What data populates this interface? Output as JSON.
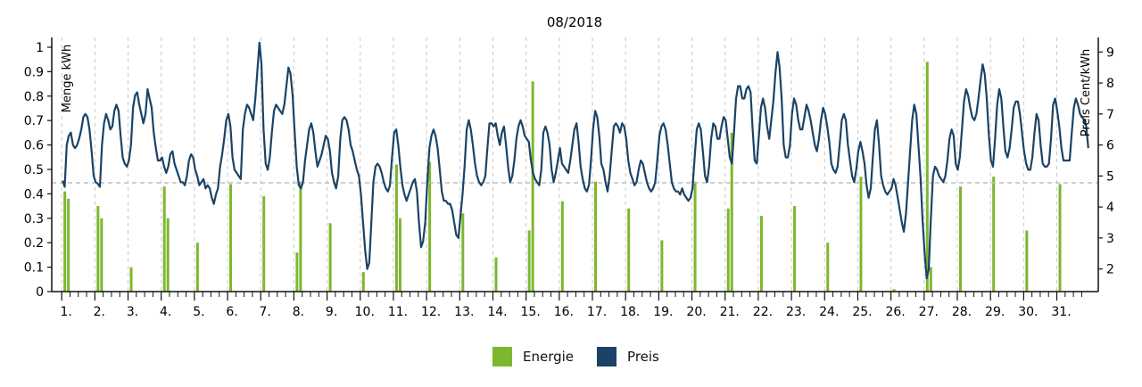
{
  "chart_data": {
    "type": "bar+line",
    "title": "08/2018",
    "ylabel_left": "Menge kWh",
    "ylabel_right": "Preis Cent/kWh",
    "ylim_left": [
      0,
      1.04
    ],
    "yticks_left": [
      "0",
      "0.1",
      "0.2",
      "0.3",
      "0.4",
      "0.5",
      "0.6",
      "0.7",
      "0.8",
      "0.9",
      "1"
    ],
    "ylim_right": [
      1.27,
      9.47
    ],
    "yticks_right": [
      "2",
      "3",
      "4",
      "5",
      "6",
      "7",
      "8",
      "9"
    ],
    "x_ticks": [
      "1.",
      "2.",
      "3.",
      "4.",
      "5.",
      "6.",
      "7.",
      "8.",
      "9.",
      "10.",
      "11.",
      "12.",
      "13.",
      "14.",
      "15.",
      "16.",
      "17.",
      "18.",
      "19.",
      "20.",
      "21.",
      "22.",
      "23.",
      "24.",
      "25.",
      "26.",
      "27.",
      "28.",
      "29.",
      "30.",
      "31."
    ],
    "reference_line_price": 4.78,
    "grid": "vertical dashed per day",
    "legend_position": "bottom-center",
    "series": [
      {
        "name": "Energie",
        "kind": "bar",
        "color": "#7db72f",
        "daily_values": [
          [
            0.41,
            0.38
          ],
          [
            0.35,
            0.3
          ],
          [
            0.1
          ],
          [
            0.43,
            0.3
          ],
          [
            0.2
          ],
          [
            0.44
          ],
          [
            0.39
          ],
          [
            0.16,
            0.45
          ],
          [
            0.28
          ],
          [
            0.08
          ],
          [
            0.52,
            0.3
          ],
          [
            0.53
          ],
          [
            0.32
          ],
          [
            0.14
          ],
          [
            0.25,
            0.86
          ],
          [
            0.37
          ],
          [
            0.45
          ],
          [
            0.34
          ],
          [
            0.21
          ],
          [
            0.45
          ],
          [
            0.34,
            0.65
          ],
          [
            0.31
          ],
          [
            0.35
          ],
          [
            0.2
          ],
          [
            0.47
          ],
          [
            0.01
          ],
          [
            0.94,
            0.1
          ],
          [
            0.43
          ],
          [
            0.47
          ],
          [
            0.25
          ],
          [
            0.44
          ]
        ]
      },
      {
        "name": "Preis",
        "kind": "line",
        "color": "#1a4366",
        "values": [
          4.85,
          4.65,
          6.0,
          6.3,
          6.4,
          6.0,
          5.9,
          6.0,
          6.2,
          6.5,
          6.9,
          7.0,
          6.9,
          6.5,
          5.8,
          5.0,
          4.8,
          4.75,
          4.65,
          6.0,
          6.7,
          7.0,
          6.8,
          6.5,
          6.6,
          7.1,
          7.3,
          7.1,
          6.3,
          5.6,
          5.4,
          5.3,
          5.5,
          6.0,
          7.2,
          7.6,
          7.7,
          7.3,
          7.0,
          6.7,
          7.0,
          7.8,
          7.5,
          7.2,
          6.4,
          5.9,
          5.5,
          5.5,
          5.6,
          5.3,
          5.1,
          5.3,
          5.7,
          5.8,
          5.4,
          5.2,
          5.0,
          4.8,
          4.8,
          4.7,
          5.0,
          5.5,
          5.7,
          5.6,
          5.2,
          5.0,
          4.7,
          4.8,
          4.9,
          4.6,
          4.7,
          4.6,
          4.3,
          4.1,
          4.4,
          4.6,
          5.3,
          5.7,
          6.2,
          6.8,
          7.0,
          6.6,
          5.6,
          5.2,
          5.1,
          5.0,
          4.9,
          6.5,
          7.0,
          7.3,
          7.2,
          7.0,
          6.8,
          7.5,
          8.4,
          9.3,
          8.6,
          6.5,
          5.4,
          5.2,
          5.6,
          6.4,
          7.1,
          7.3,
          7.2,
          7.1,
          7.0,
          7.3,
          7.9,
          8.5,
          8.3,
          7.6,
          6.4,
          5.3,
          4.7,
          4.6,
          4.8,
          5.5,
          6.0,
          6.5,
          6.7,
          6.4,
          5.8,
          5.3,
          5.5,
          5.7,
          6.0,
          6.3,
          6.2,
          5.8,
          5.1,
          4.8,
          4.6,
          5.0,
          6.2,
          6.8,
          6.9,
          6.8,
          6.5,
          6.0,
          5.8,
          5.5,
          5.2,
          5.0,
          4.4,
          3.5,
          2.6,
          2.0,
          2.2,
          3.5,
          4.8,
          5.3,
          5.4,
          5.3,
          5.1,
          4.8,
          4.6,
          4.5,
          4.7,
          5.6,
          6.4,
          6.5,
          6.0,
          5.3,
          4.7,
          4.4,
          4.2,
          4.4,
          4.6,
          4.8,
          4.9,
          4.5,
          3.5,
          2.7,
          2.9,
          3.5,
          4.8,
          5.9,
          6.3,
          6.5,
          6.3,
          5.9,
          5.2,
          4.5,
          4.2,
          4.2,
          4.1,
          4.1,
          3.9,
          3.5,
          3.1,
          3.0,
          3.7,
          4.4,
          5.3,
          6.5,
          6.8,
          6.5,
          6.0,
          5.4,
          5.0,
          4.8,
          4.7,
          4.8,
          5.0,
          5.9,
          6.7,
          6.7,
          6.6,
          6.7,
          6.3,
          6.0,
          6.4,
          6.6,
          6.0,
          5.3,
          4.8,
          5.0,
          5.5,
          6.2,
          6.6,
          6.8,
          6.6,
          6.3,
          6.2,
          6.1,
          5.5,
          5.1,
          4.9,
          4.8,
          4.7,
          5.2,
          6.4,
          6.6,
          6.4,
          6.0,
          5.2,
          4.8,
          5.1,
          5.5,
          5.9,
          5.4,
          5.3,
          5.2,
          5.1,
          5.5,
          6.0,
          6.5,
          6.7,
          6.1,
          5.3,
          4.9,
          4.6,
          4.5,
          4.7,
          5.5,
          6.5,
          7.1,
          6.9,
          6.3,
          5.4,
          5.2,
          4.8,
          4.5,
          5.0,
          5.8,
          6.6,
          6.7,
          6.6,
          6.4,
          6.7,
          6.6,
          6.2,
          5.5,
          5.1,
          4.9,
          4.7,
          4.8,
          5.2,
          5.5,
          5.4,
          5.1,
          4.8,
          4.6,
          4.5,
          4.6,
          4.8,
          5.5,
          6.3,
          6.6,
          6.7,
          6.5,
          6.0,
          5.4,
          4.8,
          4.6,
          4.5,
          4.5,
          4.4,
          4.6,
          4.4,
          4.3,
          4.2,
          4.3,
          4.6,
          5.6,
          6.5,
          6.7,
          6.5,
          5.8,
          5.0,
          4.8,
          5.3,
          6.2,
          6.7,
          6.6,
          6.2,
          6.2,
          6.6,
          6.9,
          6.8,
          6.2,
          5.6,
          5.4,
          6.4,
          7.5,
          7.9,
          7.9,
          7.5,
          7.5,
          7.8,
          7.9,
          7.7,
          6.5,
          5.5,
          5.4,
          6.3,
          7.2,
          7.5,
          7.2,
          6.6,
          6.2,
          6.8,
          7.4,
          8.3,
          9.0,
          8.5,
          7.5,
          6.0,
          5.6,
          5.6,
          6.0,
          7.0,
          7.5,
          7.3,
          6.8,
          6.5,
          6.5,
          6.9,
          7.3,
          7.1,
          6.8,
          6.4,
          6.0,
          5.8,
          6.2,
          6.8,
          7.2,
          7.0,
          6.6,
          6.1,
          5.4,
          5.2,
          5.1,
          5.3,
          6.0,
          6.8,
          7.0,
          6.8,
          6.0,
          5.5,
          5.0,
          4.8,
          5.2,
          5.8,
          6.1,
          5.8,
          5.4,
          4.7,
          4.3,
          4.6,
          5.6,
          6.5,
          6.8,
          6.0,
          5.0,
          4.7,
          4.5,
          4.4,
          4.5,
          4.6,
          4.9,
          4.7,
          4.3,
          3.9,
          3.5,
          3.2,
          3.8,
          4.8,
          5.8,
          6.8,
          7.3,
          7.0,
          6.0,
          5.0,
          3.6,
          2.5,
          1.7,
          2.0,
          3.6,
          5.0,
          5.3,
          5.2,
          5.0,
          4.9,
          4.8,
          5.0,
          5.5,
          6.2,
          6.5,
          6.3,
          5.4,
          5.2,
          5.6,
          6.5,
          7.4,
          7.8,
          7.6,
          7.2,
          6.9,
          6.8,
          7.0,
          7.5,
          8.1,
          8.6,
          8.3,
          7.5,
          6.3,
          5.5,
          5.3,
          6.2,
          7.3,
          7.8,
          7.5,
          6.6,
          5.8,
          5.6,
          5.9,
          6.5,
          7.2,
          7.4,
          7.4,
          7.0,
          6.4,
          5.8,
          5.4,
          5.2,
          5.2,
          5.6,
          6.4,
          7.0,
          6.8,
          6.0,
          5.4,
          5.3,
          5.3,
          5.4,
          6.2,
          7.3,
          7.5,
          7.1,
          6.6,
          5.9,
          5.5,
          5.5,
          5.5,
          5.5,
          6.4,
          7.2,
          7.5,
          7.3,
          7.0,
          6.9,
          6.8,
          6.6,
          5.9
        ]
      }
    ]
  },
  "legend": [
    {
      "label": "Energie",
      "color": "#7db72f"
    },
    {
      "label": "Preis",
      "color": "#1a4366"
    }
  ]
}
